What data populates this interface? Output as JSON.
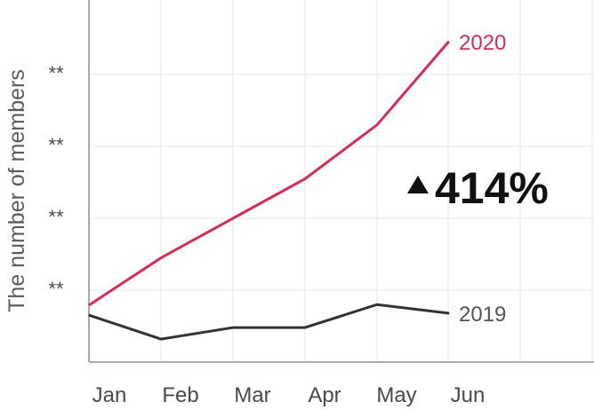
{
  "chart_data": {
    "type": "line",
    "title": "",
    "subtitle": "",
    "xlabel": "",
    "ylabel": "The number of members",
    "categories": [
      "Jan",
      "Feb",
      "Mar",
      "Apr",
      "May",
      "Jun"
    ],
    "x": [
      "Jan",
      "Feb",
      "Mar",
      "Apr",
      "May",
      "Jun"
    ],
    "ytick_labels": [
      "**",
      "**",
      "**",
      "**"
    ],
    "grid": true,
    "legend": "none",
    "annotation": "414%",
    "annotation_prefix_icon": "up-triangle-icon",
    "series": [
      {
        "name": "2020",
        "color": "#d22f57",
        "values": [
          0.8,
          1.45,
          2.0,
          2.55,
          3.3,
          4.45
        ]
      },
      {
        "name": "2019",
        "color": "#333333",
        "values": [
          0.65,
          0.32,
          0.48,
          0.48,
          0.8,
          0.68
        ]
      }
    ]
  }
}
